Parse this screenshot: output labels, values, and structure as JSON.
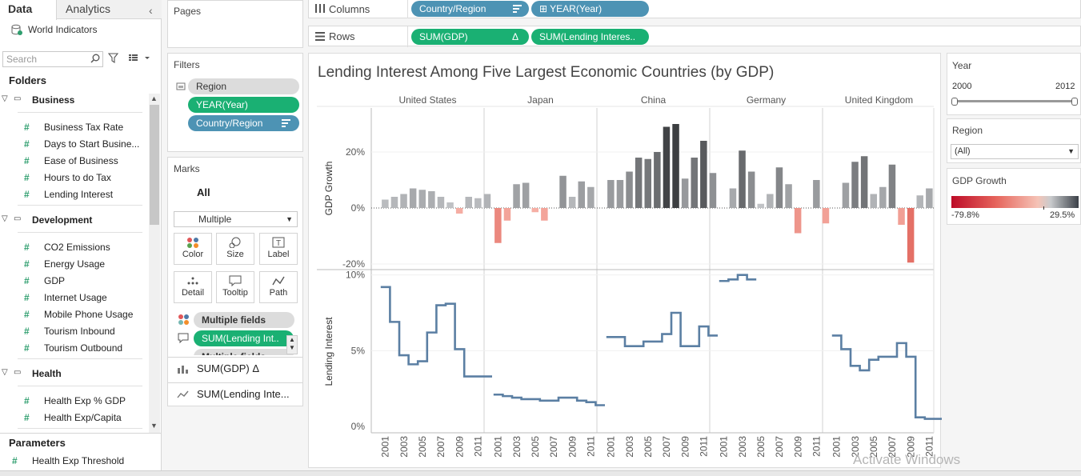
{
  "left_pane": {
    "tabs": [
      "Data",
      "Analytics"
    ],
    "datasource": "World Indicators",
    "search_placeholder": "Search",
    "folders_heading": "Folders",
    "groups": [
      {
        "name": "Business",
        "items": [
          "Business Tax Rate",
          "Days to Start Busine...",
          "Ease of Business",
          "Hours to do Tax",
          "Lending Interest"
        ]
      },
      {
        "name": "Development",
        "items": [
          "CO2 Emissions",
          "Energy Usage",
          "GDP",
          "Internet Usage",
          "Mobile Phone Usage",
          "Tourism Inbound",
          "Tourism Outbound"
        ]
      },
      {
        "name": "Health",
        "items": [
          "Health Exp % GDP",
          "Health Exp/Capita"
        ]
      }
    ],
    "parameters_heading": "Parameters",
    "parameters": [
      "Health Exp Threshold"
    ]
  },
  "pages": {
    "title": "Pages"
  },
  "filters": {
    "title": "Filters",
    "pills": [
      "Region",
      "YEAR(Year)",
      "Country/Region"
    ]
  },
  "marks": {
    "title": "Marks",
    "all_label": "All",
    "mark_type": "Multiple",
    "buttons": [
      "Color",
      "Size",
      "Label",
      "Detail",
      "Tooltip",
      "Path"
    ],
    "fields": [
      "Multiple fields",
      "SUM(Lending Int..",
      "Multiple fields"
    ],
    "layers": [
      "SUM(GDP) Δ",
      "SUM(Lending Inte..."
    ]
  },
  "shelves": {
    "columns_label": "Columns",
    "columns": [
      "Country/Region",
      "⊞ YEAR(Year)"
    ],
    "rows_label": "Rows",
    "rows": [
      "SUM(GDP)",
      "SUM(Lending Interes.."
    ],
    "rows_delta": "Δ"
  },
  "side_cards": {
    "year": {
      "title": "Year",
      "min": "2000",
      "max": "2012"
    },
    "region": {
      "title": "Region",
      "value": "(All)"
    },
    "gdp_legend": {
      "title": "GDP Growth",
      "min": "-79.8%",
      "max": "29.5%"
    }
  },
  "watermark": "Activate Windows",
  "chart_data": {
    "type": "bar",
    "title": "Lending Interest Among Five Largest Economic Countries (by GDP)",
    "countries": [
      "United States",
      "Japan",
      "China",
      "Germany",
      "United Kingdom"
    ],
    "years": [
      2000,
      2001,
      2002,
      2003,
      2004,
      2005,
      2006,
      2007,
      2008,
      2009,
      2010,
      2011,
      2012
    ],
    "x_tick_labels": [
      "2001",
      "2003",
      "2005",
      "2007",
      "2009",
      "2011"
    ],
    "gdp_growth": {
      "ylabel": "GDP Growth",
      "ylim": [
        -22,
        36
      ],
      "ticks": [
        "20%",
        "0%",
        "-20%"
      ],
      "tick_values": [
        20,
        0,
        -20
      ],
      "series": {
        "United States": [
          3,
          4,
          5,
          7,
          6.5,
          6,
          4,
          2,
          -2,
          4,
          3.5,
          5
        ],
        "Japan": [
          -12.5,
          -4.5,
          8.5,
          9,
          -1.5,
          -4.5,
          null,
          11.5,
          4,
          9.5,
          7.5
        ],
        "China": [
          10,
          10,
          13,
          18,
          17.5,
          20,
          29,
          30,
          10.5,
          18,
          24,
          12.5
        ],
        "Germany": [
          null,
          7,
          20.5,
          13,
          1.5,
          5,
          14.5,
          8.5,
          -9,
          null,
          10,
          -5.5
        ],
        "United Kingdom": [
          null,
          9,
          16.5,
          18.5,
          5,
          7.5,
          15.5,
          -6,
          -19.5,
          4.5,
          7
        ]
      }
    },
    "lending_interest": {
      "type": "line",
      "ylabel": "Lending Interest",
      "ylim": [
        0,
        10.3
      ],
      "ticks": [
        "10%",
        "5%",
        "0%"
      ],
      "tick_values": [
        10,
        5,
        0
      ],
      "series": {
        "United States": [
          9.2,
          6.9,
          4.7,
          4.1,
          4.3,
          6.2,
          8,
          8.1,
          5.1,
          3.3,
          3.3,
          3.3
        ],
        "Japan": [
          2.1,
          2,
          1.9,
          1.8,
          1.8,
          1.7,
          1.7,
          1.9,
          1.9,
          1.7,
          1.6,
          1.4
        ],
        "China": [
          5.9,
          5.9,
          5.3,
          5.3,
          5.6,
          5.6,
          6.1,
          7.5,
          5.3,
          5.3,
          6.6,
          6
        ],
        "Germany": [
          9.6,
          9.7,
          10,
          9.7
        ],
        "United Kingdom": [
          6,
          5.1,
          4,
          3.7,
          4.4,
          4.6,
          4.6,
          5.5,
          4.6,
          0.6,
          0.5,
          0.5
        ]
      }
    }
  }
}
